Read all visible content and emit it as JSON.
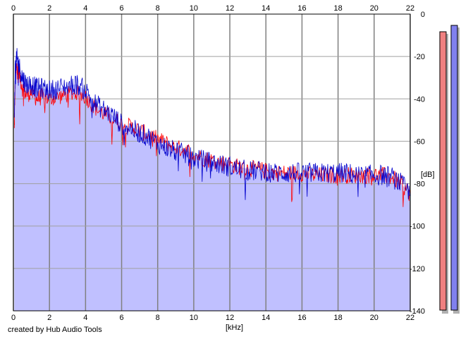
{
  "chart_data": {
    "type": "area",
    "xlabel": "[kHz]",
    "ylabel": "[dB]",
    "xlim": [
      0,
      22
    ],
    "ylim": [
      -140,
      0
    ],
    "x_ticks": [
      "0",
      "2",
      "4",
      "6",
      "8",
      "10",
      "12",
      "14",
      "16",
      "18",
      "20",
      "22"
    ],
    "y_ticks": [
      "0",
      "-20",
      "-40",
      "-60",
      "-80",
      "-100",
      "-120",
      "-140"
    ],
    "grid": true,
    "x_axis_position": "top-and-bottom",
    "y_axis_position": "right",
    "series": [
      {
        "color": "#ff0000",
        "points": [
          [
            0.05,
            -55
          ],
          [
            0.1,
            -30
          ],
          [
            0.2,
            -24
          ],
          [
            0.3,
            -27
          ],
          [
            0.5,
            -35
          ],
          [
            0.7,
            -38
          ],
          [
            1.0,
            -37
          ],
          [
            1.3,
            -40
          ],
          [
            1.6,
            -39
          ],
          [
            2.0,
            -40
          ],
          [
            2.5,
            -39
          ],
          [
            3.0,
            -38
          ],
          [
            3.5,
            -37
          ],
          [
            4.0,
            -39
          ],
          [
            4.5,
            -44
          ],
          [
            5.0,
            -47
          ],
          [
            5.5,
            -49
          ],
          [
            6.0,
            -52
          ],
          [
            6.5,
            -53
          ],
          [
            7.0,
            -55
          ],
          [
            7.5,
            -57
          ],
          [
            8.0,
            -59
          ],
          [
            8.5,
            -61
          ],
          [
            9.0,
            -63
          ],
          [
            9.5,
            -64
          ],
          [
            10.0,
            -66
          ],
          [
            10.5,
            -68
          ],
          [
            11.0,
            -69
          ],
          [
            11.5,
            -70
          ],
          [
            12.0,
            -71
          ],
          [
            12.5,
            -72
          ],
          [
            13.0,
            -73
          ],
          [
            13.5,
            -73
          ],
          [
            14.0,
            -74
          ],
          [
            14.5,
            -75
          ],
          [
            15.0,
            -75
          ],
          [
            15.5,
            -75
          ],
          [
            16.0,
            -75
          ],
          [
            16.5,
            -76
          ],
          [
            17.0,
            -76
          ],
          [
            17.5,
            -76
          ],
          [
            18.0,
            -76
          ],
          [
            18.5,
            -76
          ],
          [
            19.0,
            -76
          ],
          [
            19.5,
            -76
          ],
          [
            20.0,
            -76
          ],
          [
            20.5,
            -76
          ],
          [
            21.0,
            -77
          ],
          [
            21.5,
            -80
          ],
          [
            22.0,
            -85
          ]
        ]
      },
      {
        "color": "#0000cc",
        "points": [
          [
            0.05,
            -50
          ],
          [
            0.1,
            -25
          ],
          [
            0.2,
            -21
          ],
          [
            0.3,
            -24
          ],
          [
            0.5,
            -30
          ],
          [
            0.7,
            -33
          ],
          [
            1.0,
            -33
          ],
          [
            1.3,
            -35
          ],
          [
            1.6,
            -35
          ],
          [
            2.0,
            -36
          ],
          [
            2.5,
            -35
          ],
          [
            3.0,
            -34
          ],
          [
            3.5,
            -33
          ],
          [
            4.0,
            -36
          ],
          [
            4.5,
            -42
          ],
          [
            5.0,
            -45
          ],
          [
            5.5,
            -48
          ],
          [
            6.0,
            -52
          ],
          [
            6.5,
            -54
          ],
          [
            7.0,
            -56
          ],
          [
            7.5,
            -58
          ],
          [
            8.0,
            -61
          ],
          [
            8.5,
            -63
          ],
          [
            9.0,
            -65
          ],
          [
            9.5,
            -66
          ],
          [
            10.0,
            -68
          ],
          [
            10.5,
            -69
          ],
          [
            11.0,
            -70
          ],
          [
            11.5,
            -71
          ],
          [
            12.0,
            -72
          ],
          [
            12.5,
            -73
          ],
          [
            13.0,
            -74
          ],
          [
            13.5,
            -74
          ],
          [
            14.0,
            -74
          ],
          [
            14.5,
            -75
          ],
          [
            15.0,
            -75
          ],
          [
            15.5,
            -75
          ],
          [
            16.0,
            -75
          ],
          [
            16.5,
            -75
          ],
          [
            17.0,
            -75
          ],
          [
            17.5,
            -75
          ],
          [
            18.0,
            -75
          ],
          [
            18.5,
            -75
          ],
          [
            19.0,
            -76
          ],
          [
            19.5,
            -76
          ],
          [
            20.0,
            -76
          ],
          [
            20.5,
            -76
          ],
          [
            21.0,
            -77
          ],
          [
            21.5,
            -80
          ],
          [
            22.0,
            -85
          ]
        ]
      }
    ],
    "level_meters": [
      {
        "color": "#f08080",
        "peak_db": -5
      },
      {
        "color": "#8080ee",
        "peak_db": -2
      }
    ],
    "fill_color": "#c0c0ff"
  },
  "footer": {
    "credit": "created by Hub Audio Tools"
  }
}
